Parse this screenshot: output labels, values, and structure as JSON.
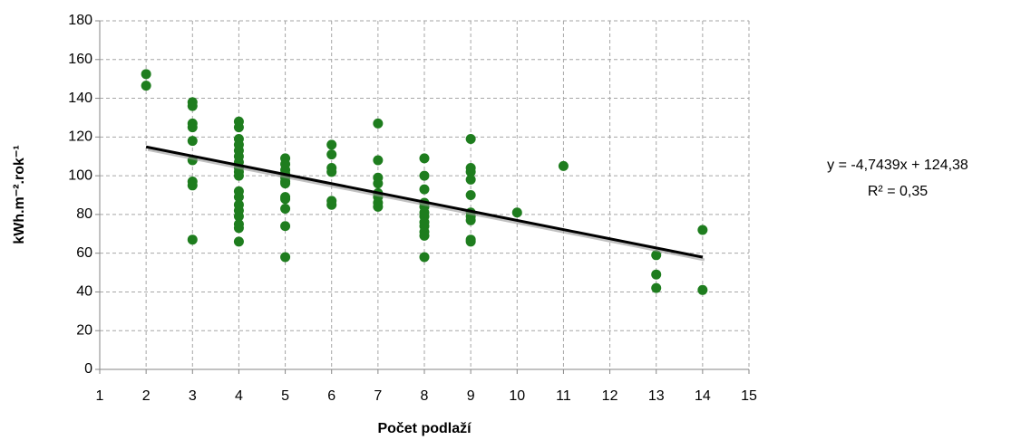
{
  "chart_data": {
    "type": "scatter",
    "x_label": "Počet podlaží",
    "y_label": "kWh.m⁻².rok⁻¹",
    "color": "#1e7d1e",
    "x": [
      2,
      2,
      3,
      3,
      3,
      3,
      3,
      3,
      3,
      3,
      3,
      4,
      4,
      4,
      4,
      4,
      4,
      4,
      4,
      4,
      4,
      4,
      4,
      4,
      4,
      4,
      4,
      4,
      4,
      5,
      5,
      5,
      5,
      5,
      5,
      5,
      5,
      5,
      5,
      5,
      5,
      6,
      6,
      6,
      6,
      6,
      6,
      7,
      7,
      7,
      7,
      7,
      7,
      7,
      7,
      8,
      8,
      8,
      8,
      8,
      8,
      8,
      8,
      8,
      8,
      8,
      8,
      9,
      9,
      9,
      9,
      9,
      9,
      9,
      9,
      9,
      9,
      10,
      11,
      13,
      13,
      13,
      14,
      14
    ],
    "values": [
      152.5,
      146.5,
      138,
      136,
      127,
      125,
      118,
      108,
      97,
      95,
      67,
      128,
      125,
      119,
      116,
      113,
      110,
      107,
      104,
      102,
      100,
      92,
      89,
      85,
      82,
      79,
      75,
      73,
      66,
      109,
      106,
      103,
      101,
      99,
      97,
      96,
      89,
      88,
      83,
      74,
      58,
      116,
      111,
      104,
      102,
      87,
      85,
      127,
      108,
      99,
      96,
      91,
      89,
      86,
      84,
      109,
      100,
      93,
      86,
      84,
      81,
      79,
      76,
      74,
      71,
      69,
      58,
      119,
      104,
      102,
      98,
      90,
      81,
      79,
      77,
      67,
      66,
      81,
      105,
      59,
      49,
      42,
      72,
      41
    ],
    "trendline": {
      "slope": -4.7439,
      "intercept": 124.38,
      "equation": "y = -4,7439x + 124,38",
      "r2": "R² = 0,35",
      "color": "#000000"
    },
    "xlim": [
      1,
      15
    ],
    "xticks": [
      1,
      2,
      3,
      4,
      5,
      6,
      7,
      8,
      9,
      10,
      11,
      12,
      13,
      14,
      15
    ],
    "ylim": [
      0,
      180
    ],
    "yticks": [
      0,
      20,
      40,
      60,
      80,
      100,
      120,
      140,
      160,
      180
    ],
    "grid": true
  }
}
